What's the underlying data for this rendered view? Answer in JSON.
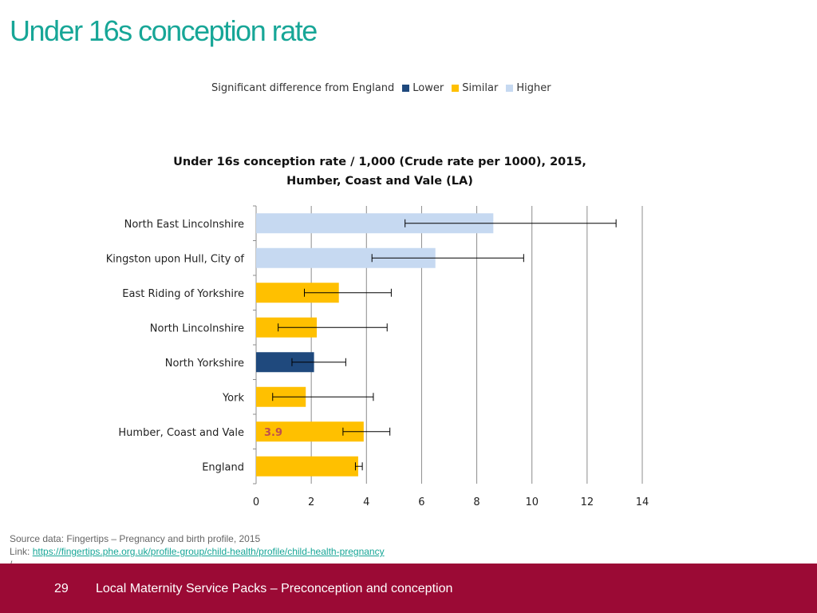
{
  "slide": {
    "title": "Under 16s conception rate"
  },
  "legend": {
    "title": "Significant difference from England",
    "items": [
      {
        "label": "Lower",
        "color": "#1f497d"
      },
      {
        "label": "Similar",
        "color": "#ffc000"
      },
      {
        "label": "Higher",
        "color": "#c6d9f1"
      }
    ]
  },
  "chart_data": {
    "type": "bar",
    "orientation": "horizontal",
    "title_line1": "Under 16s conception rate / 1,000 (Crude rate per 1000), 2015,",
    "title_line2": "Humber, Coast and Vale (LA)",
    "categories": [
      "North East Lincolnshire",
      "Kingston upon Hull, City of",
      "East Riding of Yorkshire",
      "North Lincolnshire",
      "North Yorkshire",
      "York",
      "Humber, Coast and Vale",
      "England"
    ],
    "values": [
      8.6,
      6.5,
      3.0,
      2.2,
      2.1,
      1.8,
      3.9,
      3.7
    ],
    "lower_ci": [
      5.4,
      4.2,
      1.75,
      0.8,
      1.3,
      0.6,
      3.15,
      3.6
    ],
    "upper_ci": [
      13.05,
      9.7,
      4.9,
      4.75,
      3.25,
      4.25,
      4.85,
      3.85
    ],
    "significance": [
      "Higher",
      "Higher",
      "Similar",
      "Similar",
      "Lower",
      "Similar",
      "Similar",
      "Similar"
    ],
    "data_labels": [
      {
        "category": "Humber, Coast and Vale",
        "text": "3.9"
      }
    ],
    "xlim": [
      0,
      14
    ],
    "xticks": [
      0,
      2,
      4,
      6,
      8,
      10,
      12,
      14
    ],
    "grid": true,
    "legend_position": "top"
  },
  "source": {
    "line1": "Source data: Fingertips – Pregnancy and birth profile, 2015",
    "link_prefix": "Link: ",
    "link_text": "https://fingertips.phe.org.uk/profile-group/child-health/profile/child-health-pregnancy",
    "link_suffix": "/"
  },
  "footer": {
    "page_number": "29",
    "title": "Local Maternity Service Packs – Preconception and conception"
  }
}
